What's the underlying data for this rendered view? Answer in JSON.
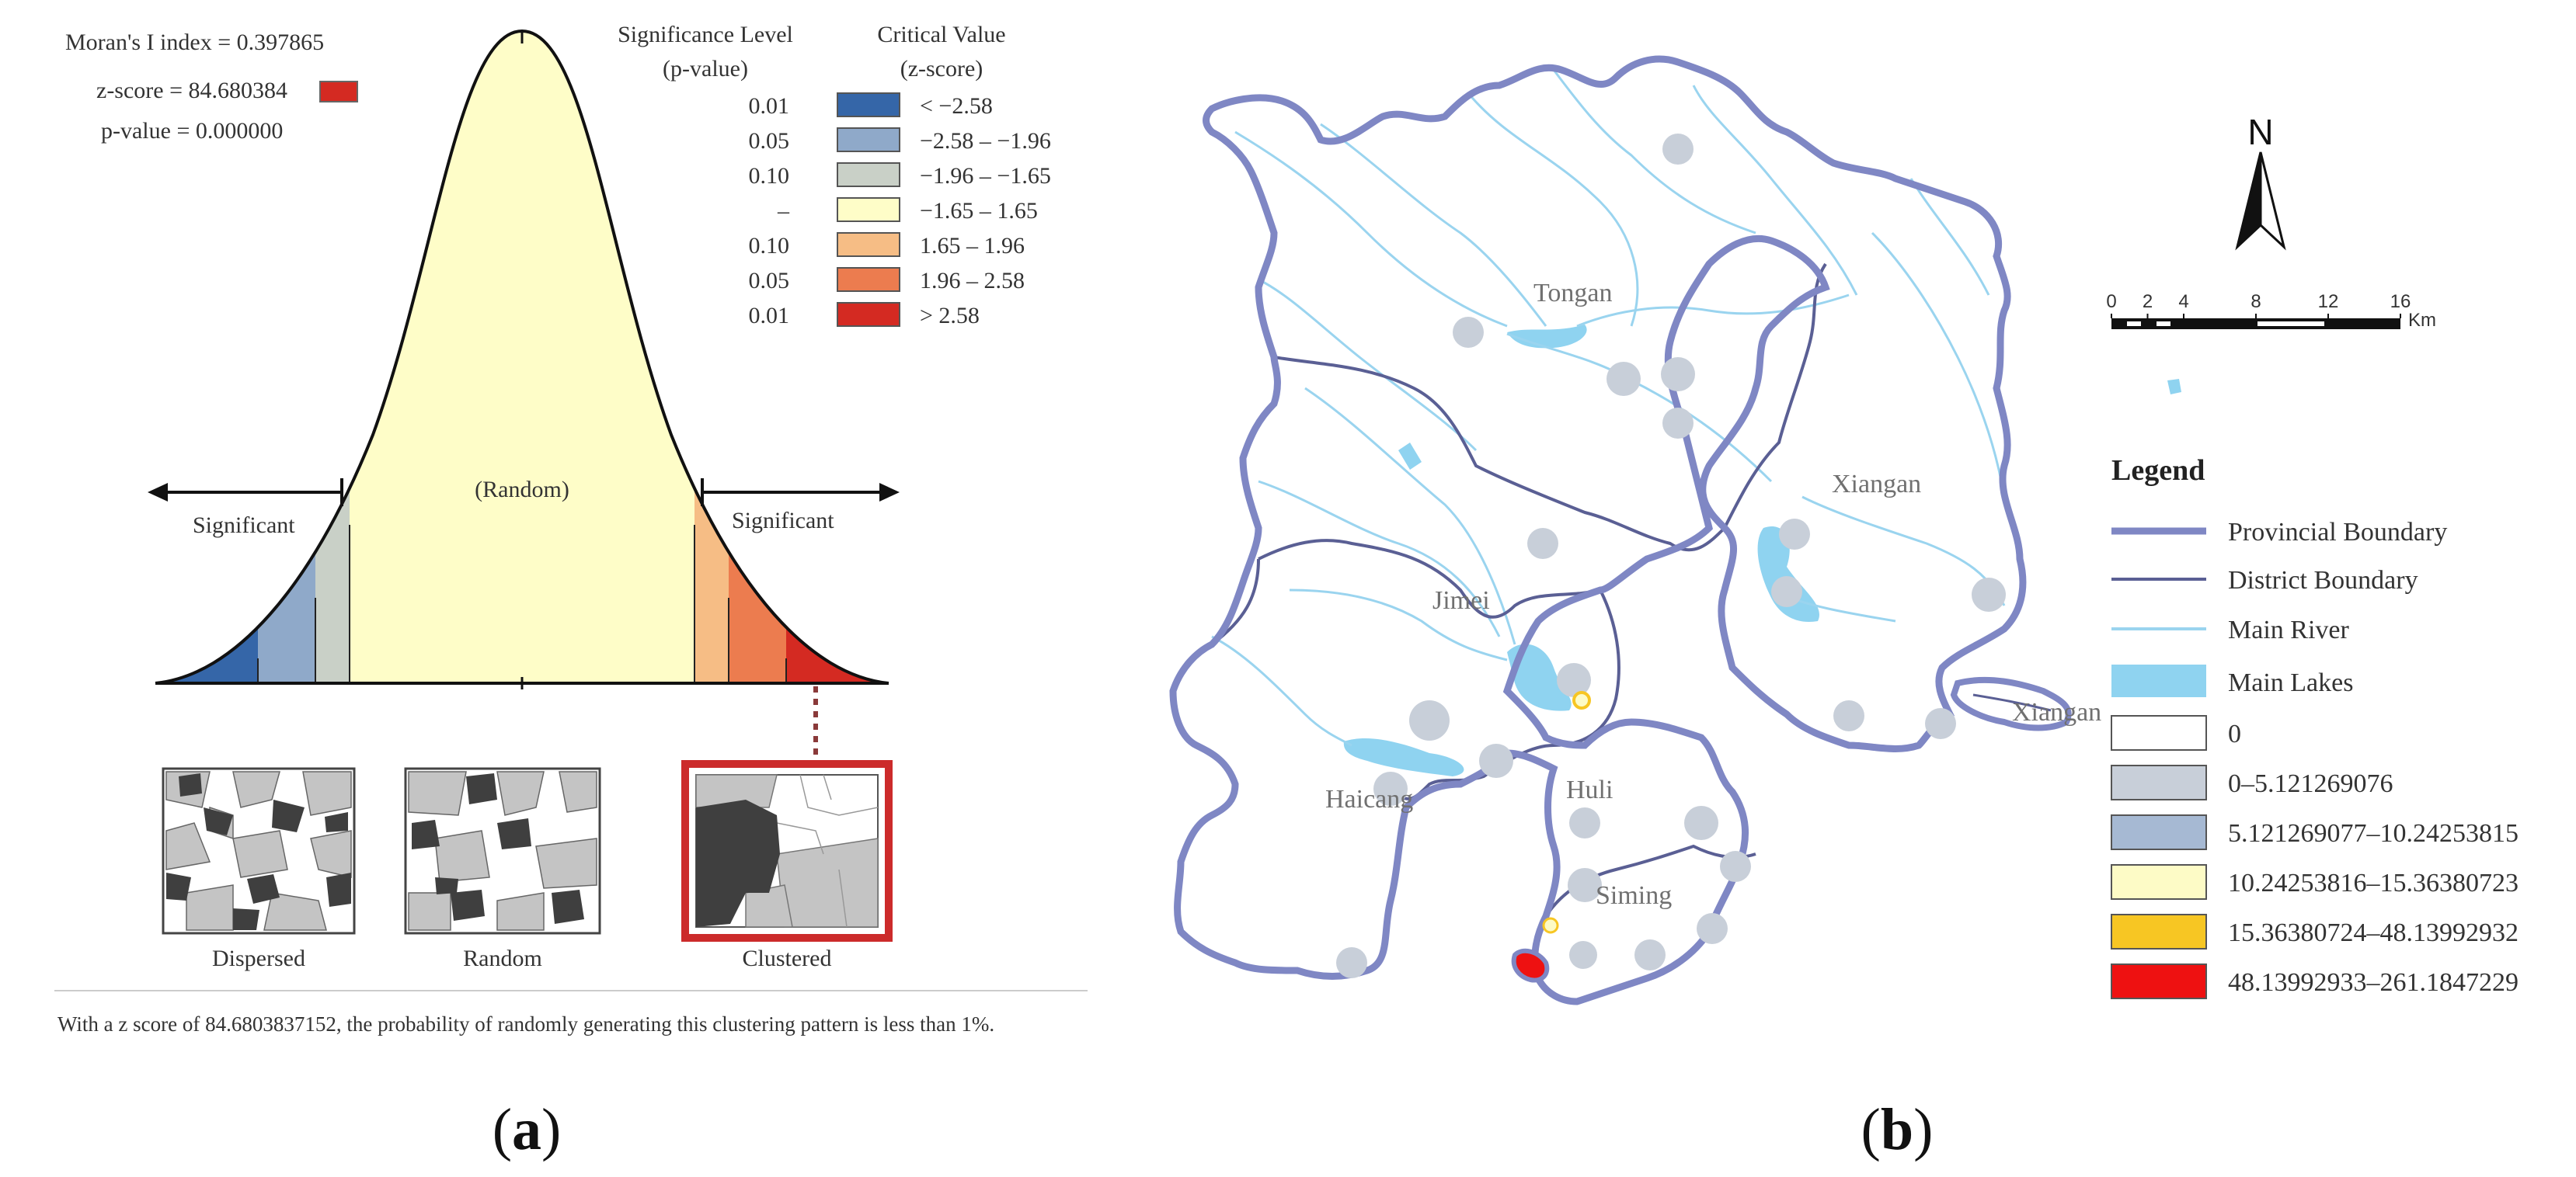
{
  "panel_a": {
    "label_open": "(",
    "label_letter": "a",
    "label_close": ")",
    "stats": {
      "morans_i": "Moran's I index = 0.397865",
      "z_score": "z-score = 84.680384",
      "p_value": "p-value = 0.000000"
    },
    "table": {
      "header_sig_1": "Significance Level",
      "header_sig_2": "(p-value)",
      "header_crit_1": "Critical Value",
      "header_crit_2": "(z-score)",
      "rows": [
        {
          "p": "0.01",
          "range": "< −2.58",
          "color": "#3566a8"
        },
        {
          "p": "0.05",
          "range": "−2.58 – −1.96",
          "color": "#8fa9c9"
        },
        {
          "p": "0.10",
          "range": "−1.96 – −1.65",
          "color": "#c9d0c7"
        },
        {
          "p": "–",
          "range": "−1.65 – 1.65",
          "color": "#fefdc8"
        },
        {
          "p": "0.10",
          "range": "1.65 – 1.96",
          "color": "#f6bd85"
        },
        {
          "p": "0.05",
          "range": "1.96 – 2.58",
          "color": "#ec7c4f"
        },
        {
          "p": "0.01",
          "range": "> 2.58",
          "color": "#d42a22"
        }
      ]
    },
    "curve": {
      "random_label": "(Random)",
      "significant_left": "Significant",
      "significant_right": "Significant"
    },
    "patterns": {
      "dispersed": "Dispersed",
      "random": "Random",
      "clustered": "Clustered"
    },
    "footer": "With a z score of 84.6803837152, the probability of randomly generating this clustering pattern is less than 1%."
  },
  "panel_b": {
    "label_open": "(",
    "label_letter": "b",
    "label_close": ")",
    "north": "N",
    "scale": {
      "ticks": [
        "0",
        "2",
        "4",
        "8",
        "12",
        "16"
      ],
      "unit": "Km"
    },
    "districts": {
      "tongan": "Tongan",
      "xiangan": "Xiangan",
      "xiangan_islet": "Xiangan",
      "jimei": "Jimei",
      "haicang": "Haicang",
      "huli": "Huli",
      "siming": "Siming"
    },
    "legend": {
      "title": "Legend",
      "provincial": "Provincial Boundary",
      "district": "District Boundary",
      "river": "Main River",
      "lakes": "Main Lakes",
      "classes": [
        {
          "label": "0",
          "color": "#ffffff"
        },
        {
          "label": "0–5.121269076",
          "color": "#c8cfd9"
        },
        {
          "label": "5.121269077–10.24253815",
          "color": "#a6b9d3"
        },
        {
          "label": "10.24253816–15.36380723",
          "color": "#fdfbc6"
        },
        {
          "label": "15.36380724–48.13992932",
          "color": "#f7c623"
        },
        {
          "label": "48.13992933–261.1847229",
          "color": "#ee1111"
        }
      ]
    },
    "colors": {
      "provincial": "#7f87c4",
      "district": "#5a5f94",
      "river": "#9ad4ef",
      "lake": "#8fd3f0"
    }
  }
}
